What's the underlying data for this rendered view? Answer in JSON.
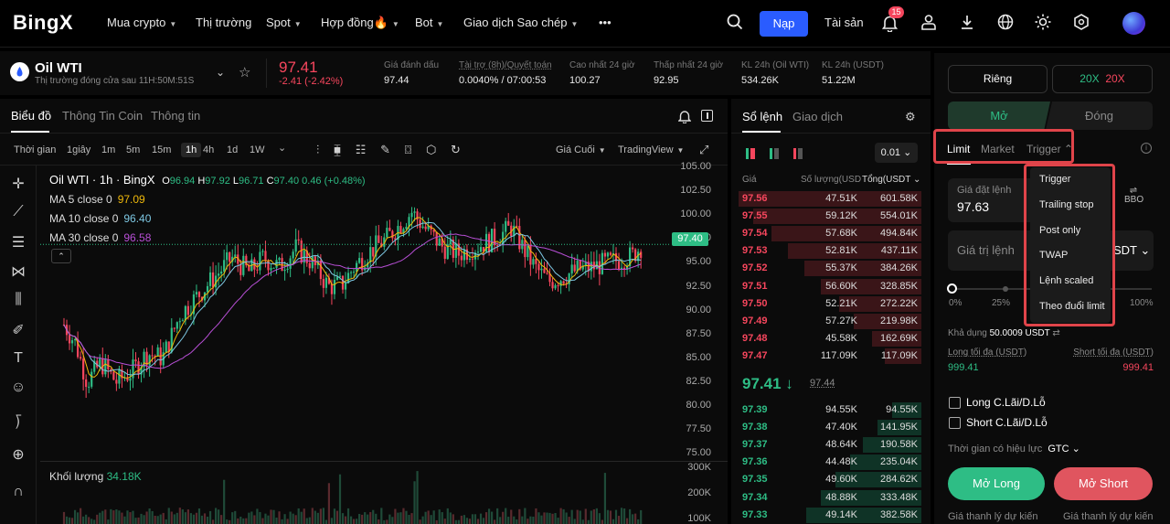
{
  "nav": {
    "logo": "BingX",
    "items": [
      {
        "label": "Mua crypto",
        "caret": true
      },
      {
        "label": "Thị trường",
        "caret": false
      },
      {
        "label": "Spot",
        "caret": true
      },
      {
        "label": "Hợp đồng🔥",
        "caret": true
      },
      {
        "label": "Bot",
        "caret": true
      },
      {
        "label": "Giao dịch Sao chép",
        "caret": true
      },
      {
        "label": "•••",
        "caret": false
      }
    ],
    "deposit_button": "Nạp",
    "assets_link": "Tài sản",
    "notification_count": "15"
  },
  "ticker": {
    "symbol": "Oil WTI",
    "subtitle": "Thị trường đóng cửa sau  11H:50M:51S",
    "last_price": "97.41",
    "change": "-2.41 (-2.42%)",
    "stats": [
      {
        "label": "Giá đánh dấu",
        "value": "97.44",
        "color": "white"
      },
      {
        "label": "Tài trợ (8h)/Quyết toán",
        "value": "0.0040% / 07:00:53",
        "color": "orange"
      },
      {
        "label": "Cao nhất 24 giờ",
        "value": "100.27",
        "color": "white"
      },
      {
        "label": "Thấp nhất 24 giờ",
        "value": "92.95",
        "color": "white"
      },
      {
        "label": "KL 24h (Oil WTI)",
        "value": "534.26K",
        "color": "white"
      },
      {
        "label": "KL 24h (USDT)",
        "value": "51.22M",
        "color": "white"
      }
    ]
  },
  "chart_tabs": [
    "Biểu đồ",
    "Thông Tin Coin",
    "Thông tin"
  ],
  "timeframes": [
    "Thời gian",
    "1giây",
    "1m",
    "5m",
    "15m",
    "1h",
    "4h",
    "1d",
    "1W"
  ],
  "price_type": "Giá Cuối",
  "chart_source": "TradingView",
  "chart_header": {
    "title": "Oil WTI · 1h · BingX",
    "o": "96.94",
    "h": "97.92",
    "l": "96.71",
    "c": "97.40",
    "chg": "0.46 (+0.48%)"
  },
  "ma": [
    {
      "label": "MA 5 close 0",
      "value": "97.09",
      "color": "#f0b90b"
    },
    {
      "label": "MA 10 close 0",
      "value": "96.40",
      "color": "#7ec8e3"
    },
    {
      "label": "MA 30 close 0",
      "value": "96.58",
      "color": "#b84fd6"
    }
  ],
  "current_price_tag": "97.40",
  "volume_label": "Khối lượng",
  "volume_value": "34.18K",
  "chart_data": {
    "type": "candlestick",
    "yticks": [
      "105.00",
      "102.50",
      "100.00",
      "97.50",
      "95.00",
      "92.50",
      "90.00",
      "87.50",
      "85.00",
      "82.50",
      "80.00",
      "77.50",
      "75.00"
    ],
    "ylim": [
      75,
      105
    ],
    "volume_ticks": [
      "300K",
      "200K",
      "100K"
    ]
  },
  "orderbook": {
    "tabs": [
      "Sổ lệnh",
      "Giao dịch"
    ],
    "precision": "0.01",
    "headers": [
      "Giá",
      "Số lượng(USD",
      "Tổng(USDT"
    ],
    "asks": [
      {
        "price": "97.56",
        "qty": "47.51K",
        "total": "601.58K",
        "depth": 1.0
      },
      {
        "price": "97.55",
        "qty": "59.12K",
        "total": "554.01K",
        "depth": 0.92
      },
      {
        "price": "97.54",
        "qty": "57.68K",
        "total": "494.84K",
        "depth": 0.82
      },
      {
        "price": "97.53",
        "qty": "52.81K",
        "total": "437.11K",
        "depth": 0.73
      },
      {
        "price": "97.52",
        "qty": "55.37K",
        "total": "384.26K",
        "depth": 0.64
      },
      {
        "price": "97.51",
        "qty": "56.60K",
        "total": "328.85K",
        "depth": 0.55
      },
      {
        "price": "97.50",
        "qty": "52.21K",
        "total": "272.22K",
        "depth": 0.45
      },
      {
        "price": "97.49",
        "qty": "57.27K",
        "total": "219.98K",
        "depth": 0.37
      },
      {
        "price": "97.48",
        "qty": "45.58K",
        "total": "162.69K",
        "depth": 0.27
      },
      {
        "price": "97.47",
        "qty": "117.09K",
        "total": "117.09K",
        "depth": 0.2
      }
    ],
    "mid_price": "97.41",
    "mid_arrow": "↓",
    "mark_price": "97.44",
    "bids": [
      {
        "price": "97.39",
        "qty": "94.55K",
        "total": "94.55K",
        "depth": 0.16
      },
      {
        "price": "97.38",
        "qty": "47.40K",
        "total": "141.95K",
        "depth": 0.24
      },
      {
        "price": "97.37",
        "qty": "48.64K",
        "total": "190.58K",
        "depth": 0.32
      },
      {
        "price": "97.36",
        "qty": "44.48K",
        "total": "235.04K",
        "depth": 0.39
      },
      {
        "price": "97.35",
        "qty": "49.60K",
        "total": "284.62K",
        "depth": 0.47
      },
      {
        "price": "97.34",
        "qty": "48.88K",
        "total": "333.48K",
        "depth": 0.55
      },
      {
        "price": "97.33",
        "qty": "49.14K",
        "total": "382.58K",
        "depth": 0.63
      }
    ]
  },
  "order_panel": {
    "margin_mode": "Riêng",
    "leverage_long": "20X",
    "leverage_short": "20X",
    "open_tab": "Mở",
    "close_tab": "Đóng",
    "order_types": [
      "Limit",
      "Market",
      "Trigger"
    ],
    "price_label": "Giá đặt lệnh",
    "price_value": "97.63",
    "bbo": "BBO",
    "value_placeholder": "Giá trị lệnh",
    "value_unit": "SDT",
    "slider_ticks": [
      "0%",
      "25%",
      "100%"
    ],
    "available_label": "Khả dụng",
    "available_value": "50.0009 USDT",
    "long_max_label": "Long tối đa (USDT)",
    "long_max_value": "999.41",
    "short_max_label": "Short tối đa (USDT)",
    "short_max_value": "999.41",
    "long_tpsl": "Long C.Lãi/D.Lỗ",
    "short_tpsl": "Short C.Lãi/D.Lỗ",
    "tif_label": "Thời gian có hiệu lực",
    "tif_value": "GTC",
    "open_long": "Mở Long",
    "open_short": "Mở Short",
    "liq_label_long": "Giá thanh lý dự kiến",
    "liq_label_short": "Giá thanh lý dự kiến"
  },
  "trigger_menu": [
    "Trigger",
    "Trailing stop",
    "Post only",
    "TWAP",
    "Lệnh scaled",
    "Theo đuổi limit"
  ]
}
